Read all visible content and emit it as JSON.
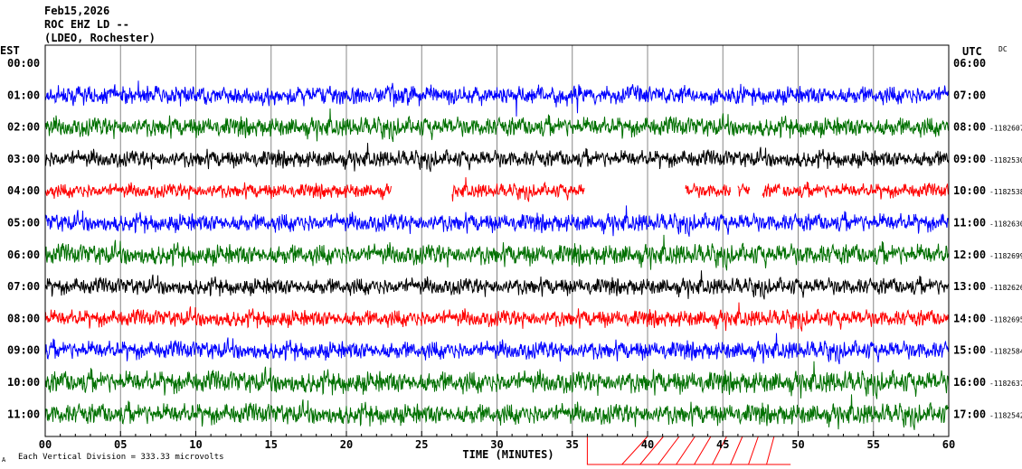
{
  "header": {
    "date": "Feb15,2026",
    "station": "ROC EHZ LD --",
    "network": "(LDEO, Rochester)"
  },
  "labels": {
    "left_zone": "EST",
    "right_zone": "UTC",
    "dc": "DC",
    "x_title": "TIME (MINUTES)",
    "footer": "Each Vertical Division =  333.33 microvolts",
    "footer_mark": "A"
  },
  "chart_data": {
    "type": "line",
    "title": "",
    "xlabel": "TIME (MINUTES)",
    "x_ticks": [
      "00",
      "05",
      "10",
      "15",
      "20",
      "25",
      "30",
      "35",
      "40",
      "45",
      "50",
      "55",
      "60"
    ],
    "xlim": [
      0,
      60
    ],
    "rows": [
      {
        "est": "00:00",
        "utc": "06:00",
        "dc": "",
        "color": "",
        "present": false
      },
      {
        "est": "01:00",
        "utc": "07:00",
        "dc": "",
        "color": "#0000ff",
        "present": true,
        "amp": 14,
        "gaps": []
      },
      {
        "est": "02:00",
        "utc": "08:00",
        "dc": "-1182607",
        "color": "#007000",
        "present": true,
        "amp": 15,
        "gaps": []
      },
      {
        "est": "03:00",
        "utc": "09:00",
        "dc": "-1182530",
        "color": "#000000",
        "present": true,
        "amp": 13,
        "gaps": []
      },
      {
        "est": "04:00",
        "utc": "10:00",
        "dc": "-1182538",
        "color": "#ff0000",
        "present": true,
        "amp": 11,
        "gaps": [
          [
            23,
            27
          ],
          [
            35.8,
            42.5
          ],
          [
            45.5,
            46
          ],
          [
            46.8,
            47.6
          ],
          [
            48.8,
            49
          ]
        ]
      },
      {
        "est": "05:00",
        "utc": "11:00",
        "dc": "-1182630",
        "color": "#0000ff",
        "present": true,
        "amp": 14,
        "gaps": []
      },
      {
        "est": "06:00",
        "utc": "12:00",
        "dc": "-1182699",
        "color": "#007000",
        "present": true,
        "amp": 16,
        "gaps": []
      },
      {
        "est": "07:00",
        "utc": "13:00",
        "dc": "-1182626",
        "color": "#000000",
        "present": true,
        "amp": 13,
        "gaps": []
      },
      {
        "est": "08:00",
        "utc": "14:00",
        "dc": "-1182695",
        "color": "#ff0000",
        "present": true,
        "amp": 13,
        "gaps": []
      },
      {
        "est": "09:00",
        "utc": "15:00",
        "dc": "-1182584",
        "color": "#0000ff",
        "present": true,
        "amp": 14,
        "gaps": []
      },
      {
        "est": "10:00",
        "utc": "16:00",
        "dc": "-1182637",
        "color": "#007000",
        "present": true,
        "amp": 17,
        "gaps": []
      },
      {
        "est": "11:00",
        "utc": "17:00",
        "dc": "-1182542",
        "color": "#007000",
        "present": true,
        "amp": 16,
        "gaps": []
      }
    ],
    "annotation_line": {
      "color": "#ff0000",
      "x_start": 36,
      "x_end": 49.5
    }
  }
}
